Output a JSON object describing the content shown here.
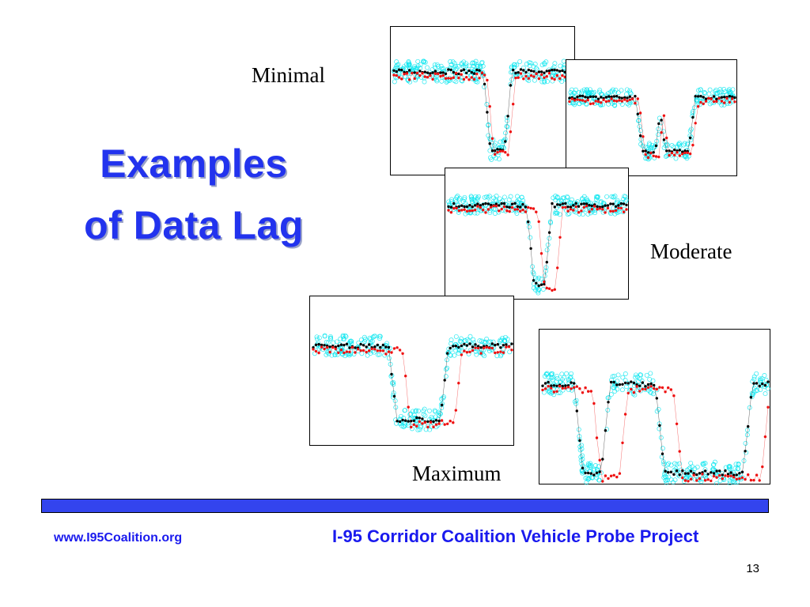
{
  "slide": {
    "title_line1": "Examples",
    "title_line2": "of Data Lag",
    "labels": {
      "minimal": "Minimal",
      "moderate": "Moderate",
      "maximum": "Maximum"
    },
    "footer": {
      "url": "www.I95Coalition.org",
      "project": "I-95 Corridor Coalition Vehicle Probe Project",
      "page_number": "13"
    }
  },
  "colors": {
    "title": "#2233ee",
    "divider": "#3344ee",
    "footer_text": "#1a1aee",
    "probe_points": "#00e5ee",
    "reference_series": "#000000",
    "lagged_series": "#ee1111"
  }
}
